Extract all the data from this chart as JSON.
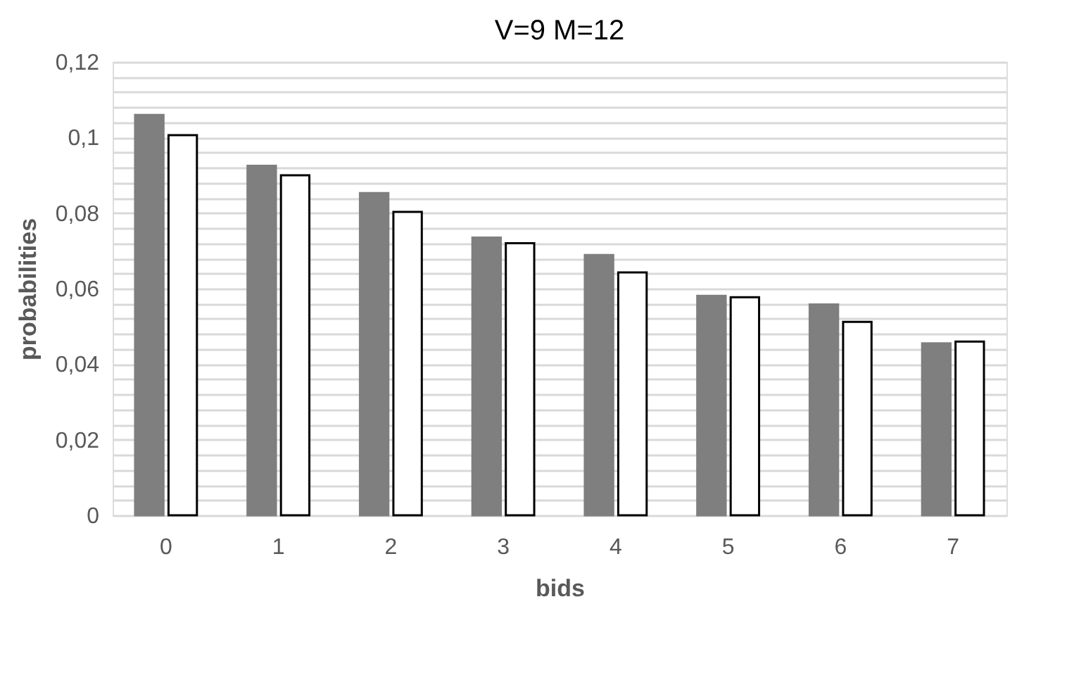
{
  "chart_data": {
    "type": "bar",
    "title": "V=9 M=12",
    "xlabel": "bids",
    "ylabel": "probabilities",
    "categories": [
      "0",
      "1",
      "2",
      "3",
      "4",
      "5",
      "6",
      "7"
    ],
    "series": [
      {
        "color": "#7f7f7f",
        "values": [
          0.106,
          0.0925,
          0.0853,
          0.0735,
          0.0689,
          0.0581,
          0.0558,
          0.0455
        ]
      },
      {
        "color": "#000000",
        "values": [
          0.1006,
          0.09,
          0.0803,
          0.072,
          0.0643,
          0.0577,
          0.0512,
          0.046
        ]
      }
    ],
    "ylim": [
      0,
      0.12
    ],
    "yticks": [
      {
        "value": 0,
        "label": "0"
      },
      {
        "value": 0.004,
        "label": null
      },
      {
        "value": 0.008,
        "label": null
      },
      {
        "value": 0.012,
        "label": null
      },
      {
        "value": 0.016,
        "label": null
      },
      {
        "value": 0.02,
        "label": "0,02"
      },
      {
        "value": 0.024,
        "label": null
      },
      {
        "value": 0.028,
        "label": null
      },
      {
        "value": 0.032,
        "label": null
      },
      {
        "value": 0.036,
        "label": null
      },
      {
        "value": 0.04,
        "label": "0,04"
      },
      {
        "value": 0.044,
        "label": null
      },
      {
        "value": 0.048,
        "label": null
      },
      {
        "value": 0.052,
        "label": null
      },
      {
        "value": 0.056,
        "label": null
      },
      {
        "value": 0.06,
        "label": "0,06"
      },
      {
        "value": 0.064,
        "label": null
      },
      {
        "value": 0.068,
        "label": null
      },
      {
        "value": 0.072,
        "label": null
      },
      {
        "value": 0.076,
        "label": null
      },
      {
        "value": 0.08,
        "label": "0,08"
      },
      {
        "value": 0.084,
        "label": null
      },
      {
        "value": 0.088,
        "label": null
      },
      {
        "value": 0.092,
        "label": null
      },
      {
        "value": 0.096,
        "label": null
      },
      {
        "value": 0.1,
        "label": "0,1"
      },
      {
        "value": 0.104,
        "label": null
      },
      {
        "value": 0.108,
        "label": null
      },
      {
        "value": 0.112,
        "label": null
      },
      {
        "value": 0.116,
        "label": null
      },
      {
        "value": 0.12,
        "label": "0,12"
      }
    ],
    "grid": true,
    "legend": false
  }
}
